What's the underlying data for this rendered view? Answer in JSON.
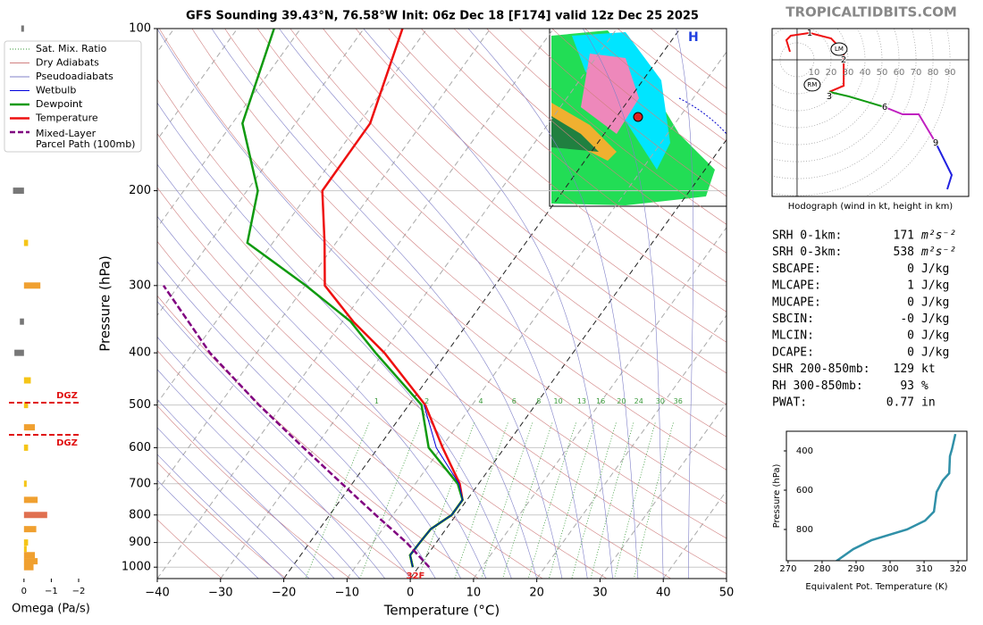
{
  "chart_data": [
    {
      "type": "skewt",
      "title": "GFS Sounding 39.43°N, 76.58°W Init: 06z Dec 18 [F174] valid 12z Dec 25 2025",
      "xlabel": "Temperature (°C)",
      "ylabel": "Pressure (hPa)",
      "xlim": [
        -40,
        50
      ],
      "ylim": [
        1050,
        100
      ],
      "log_y": true,
      "grid": true,
      "xticks": [
        {
          "value": -40,
          "label": "−40"
        },
        {
          "value": -30,
          "label": "−30"
        },
        {
          "value": -20,
          "label": "−20"
        },
        {
          "value": -10,
          "label": "−10"
        },
        0,
        10,
        20,
        30,
        40,
        50
      ],
      "yticks": [
        100,
        200,
        300,
        400,
        500,
        600,
        700,
        800,
        900,
        1000
      ],
      "highlight_isotherms": [
        -20,
        0
      ],
      "mixing_ratio_labels": [
        1,
        2,
        4,
        6,
        8,
        10,
        13,
        16,
        20,
        24,
        30,
        36
      ],
      "legend": [
        {
          "name": "Sat. Mix. Ratio",
          "color": "#3a9a3a",
          "style": "dotted"
        },
        {
          "name": "Dry Adiabats",
          "color": "#d08080",
          "style": "solid"
        },
        {
          "name": "Pseudoadiabats",
          "color": "#8080c8",
          "style": "solid"
        },
        {
          "name": "Wetbulb",
          "color": "#0000dd",
          "style": "solid"
        },
        {
          "name": "Dewpoint",
          "color": "#109a10",
          "style": "thick"
        },
        {
          "name": "Temperature",
          "color": "#ee1010",
          "style": "thick"
        },
        {
          "name": "Mixed-Layer\nParcel Path (100mb)",
          "color": "#800080",
          "style": "dashed"
        }
      ],
      "series": [
        {
          "name": "Temperature",
          "color": "#ee1010",
          "pressure": [
            100,
            150,
            200,
            250,
            300,
            350,
            400,
            500,
            600,
            700,
            750,
            800,
            850,
            900,
            950,
            1000
          ],
          "values": [
            -63.9,
            -58.2,
            -58.1,
            -51.8,
            -46.9,
            -38.3,
            -29.8,
            -17.4,
            -9.8,
            -3,
            -0.7,
            -0.7,
            -2.4,
            -2.6,
            -2.7,
            -0.9
          ]
        },
        {
          "name": "Dewpoint",
          "color": "#109a10",
          "pressure": [
            100,
            150,
            200,
            250,
            300,
            350,
            400,
            500,
            600,
            700,
            750,
            800,
            850,
            900,
            950,
            1000
          ],
          "values": [
            -84.2,
            -78.4,
            -68.3,
            -64,
            -49.9,
            -38.7,
            -31.2,
            -18,
            -12,
            -3.3,
            -0.7,
            -0.7,
            -2.4,
            -2.6,
            -2.7,
            -0.9
          ]
        },
        {
          "name": "Wetbulb",
          "color": "#0000dd",
          "pressure": [
            500,
            600,
            700,
            750,
            800,
            850,
            900,
            950,
            1000
          ],
          "values": [
            -17.6,
            -10.8,
            -3.1,
            -0.7,
            -0.7,
            -2.4,
            -2.6,
            -2.7,
            -0.9
          ]
        },
        {
          "name": "Mixed-Layer Parcel Path (100mb)",
          "color": "#800080",
          "pressure": [
            1000,
            900,
            800,
            700,
            600,
            500,
            400,
            300
          ],
          "values": [
            1.7,
            -4.7,
            -12.7,
            -21.6,
            -31.8,
            -43.7,
            -57.4,
            -72.4
          ]
        }
      ],
      "annotation": "32F"
    },
    {
      "type": "barh",
      "xlabel": "Omega (Pa/s)",
      "xlim": [
        0.55,
        -2
      ],
      "xticks": [
        0,
        {
          "value": -1,
          "label": "−1"
        },
        {
          "value": -2,
          "label": "−2"
        }
      ],
      "levels": [
        100,
        200,
        250,
        300,
        350,
        400,
        450,
        500,
        550,
        600,
        700,
        750,
        800,
        850,
        900,
        925,
        950,
        975,
        1000
      ],
      "values": [
        0.1,
        0.4,
        -0.15,
        -0.6,
        0.15,
        0.35,
        -0.25,
        -0.15,
        -0.4,
        -0.15,
        -0.1,
        -0.5,
        -0.85,
        -0.45,
        -0.15,
        -0.1,
        -0.4,
        -0.5,
        -0.35
      ],
      "colors": [
        "#777",
        "#777",
        "#f5c518",
        "#f0a030",
        "#777",
        "#777",
        "#f5c518",
        "#f5c518",
        "#f0a030",
        "#f5c518",
        "#f5c518",
        "#f0a030",
        "#e07050",
        "#f0a030",
        "#f5c518",
        "#f5c518",
        "#f0a030",
        "#f0a030",
        "#f0a030"
      ],
      "dgz": {
        "label": "DGZ",
        "levels": [
          495,
          568
        ]
      }
    },
    {
      "type": "hodograph",
      "xlabel": "Hodograph (wind in kt, height in km)",
      "xlim": [
        -14.7,
        101
      ],
      "ylim": [
        -80.5,
        18.4
      ],
      "ring_labels": [
        10,
        20,
        30,
        40,
        50,
        60,
        70,
        80,
        90
      ],
      "series": [
        {
          "color": "#ee1010",
          "u": [
            -4.2,
            -6.3,
            -3.7,
            7.4,
            20,
            27.4,
            27.4,
            18.9
          ],
          "v": [
            4.7,
            11.6,
            14.2,
            15.8,
            12.6,
            4.7,
            -15.3,
            -18.9
          ]
        },
        {
          "color": "#109a10",
          "u": [
            18.9,
            30.5,
            41,
            51.6
          ],
          "v": [
            -18.9,
            -21.6,
            -24.7,
            -27.9
          ]
        },
        {
          "color": "#c020c0",
          "u": [
            51.6,
            62.1,
            71.6,
            81.6
          ],
          "v": [
            -27.9,
            -32.1,
            -32.1,
            -48.9
          ]
        },
        {
          "color": "#2020e0",
          "u": [
            81.6,
            91,
            88.4
          ],
          "v": [
            -48.9,
            -67.9,
            -76.3
          ]
        }
      ],
      "height_labels": [
        {
          "label": "1",
          "u": 7.4,
          "v": 15.8
        },
        {
          "label": "2",
          "u": 27.4,
          "v": 0
        },
        {
          "label": "3",
          "u": 18.9,
          "v": -21.5
        },
        {
          "label": "6",
          "u": 51.6,
          "v": -27.9
        },
        {
          "label": "9",
          "u": 81.6,
          "v": -48.9
        }
      ],
      "motions": [
        {
          "label": "LM",
          "u": 24.7,
          "v": 6.3
        },
        {
          "label": "RM",
          "u": 8.9,
          "v": -14.7
        }
      ]
    },
    {
      "type": "line",
      "xlabel": "Equivalent Pot. Temperature (K)",
      "ylabel": "Pressure (hPa)",
      "xlim": [
        269.5,
        322.6
      ],
      "ylim": [
        959,
        300
      ],
      "xticks": [
        270,
        280,
        290,
        300,
        310,
        320
      ],
      "yticks": [
        400,
        600,
        800
      ],
      "color": "#3090a8",
      "x": [
        282.1,
        283.2,
        289.2,
        294.5,
        305,
        310.3,
        312.9,
        313.7,
        315.5,
        317.4,
        317.6,
        318.2,
        319.2
      ],
      "values": [
        1027,
        973,
        900,
        855,
        800,
        755,
        709,
        609,
        550,
        514,
        427,
        391,
        314
      ]
    }
  ],
  "header": {
    "site": "TROPICALTIDBITS.COM"
  },
  "inset_map": {
    "label": "H"
  },
  "indices": [
    {
      "label": "SRH 0-1km:",
      "value": "171",
      "unit": "m²s⁻²",
      "color": "#a030a0"
    },
    {
      "label": "SRH 0-3km:",
      "value": "538",
      "unit": "m²s⁻²",
      "color": "#a030a0"
    },
    {
      "label": "SBCAPE:",
      "value": "0",
      "unit": "J/kg",
      "color": "#000"
    },
    {
      "label": "MLCAPE:",
      "value": "1",
      "unit": "J/kg",
      "color": "#e02020"
    },
    {
      "label": "MUCAPE:",
      "value": "0",
      "unit": "J/kg",
      "color": "#000"
    },
    {
      "label": "SBCIN:",
      "value": "-0",
      "unit": "J/kg",
      "color": "#000"
    },
    {
      "label": "MLCIN:",
      "value": "0",
      "unit": "J/kg",
      "color": "#000"
    },
    {
      "label": "DCAPE:",
      "value": "0",
      "unit": "J/kg",
      "color": "#000"
    },
    {
      "label": "SHR 200-850mb:",
      "value": "129",
      "unit": "kt",
      "color": "#a02020"
    },
    {
      "label": "RH 300-850mb:",
      "value": "93",
      "unit": "%",
      "color": "#108050"
    },
    {
      "label": "PWAT:",
      "value": "0.77",
      "unit": "in",
      "color": "#000"
    }
  ]
}
